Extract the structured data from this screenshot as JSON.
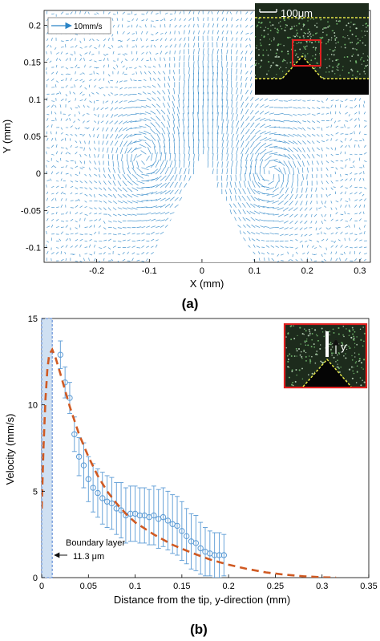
{
  "figure": {
    "panel_a_label": "(a)",
    "panel_b_label": "(b)"
  },
  "chart_data": [
    {
      "type": "quiver",
      "xlabel": "X (mm)",
      "ylabel": "Y (mm)",
      "xlim": [
        -0.3,
        0.32
      ],
      "ylim": [
        -0.12,
        0.22
      ],
      "xticks": [
        -0.2,
        -0.1,
        0,
        0.1,
        0.2,
        0.3
      ],
      "xtick_labels": [
        "-0.2",
        "-0.1",
        "0",
        "0.1",
        "0.2",
        "0.3"
      ],
      "yticks": [
        -0.1,
        -0.05,
        0,
        0.05,
        0.1,
        0.15,
        0.2
      ],
      "ytick_labels": [
        "-0.1",
        "-0.05",
        "0",
        "0.05",
        "0.1",
        "0.15",
        "0.2"
      ],
      "legend": {
        "text": "10mm/s",
        "reference_speed_mm_s": 10,
        "position": "top-left"
      },
      "tip_wedge": {
        "apex": [
          0.0,
          0.02
        ],
        "base_left": [
          -0.1,
          -0.12
        ],
        "base_right": [
          0.1,
          -0.12
        ]
      },
      "inset": {
        "label": "100μm",
        "position": "top-right"
      },
      "vector_color": "#2a84c6",
      "grid": false
    },
    {
      "type": "scatter",
      "xlabel": "Distance from the tip, y-direction (mm)",
      "ylabel": "Velocity (mm/s)",
      "xlim": [
        0,
        0.35
      ],
      "ylim": [
        0,
        15
      ],
      "xticks": [
        0,
        0.05,
        0.1,
        0.15,
        0.2,
        0.25,
        0.3,
        0.35
      ],
      "xtick_labels": [
        "0",
        "0.05",
        "0.1",
        "0.15",
        "0.2",
        "0.25",
        "0.3",
        "0.35"
      ],
      "yticks": [
        0,
        5,
        10,
        15
      ],
      "ytick_labels": [
        "0",
        "5",
        "10",
        "15"
      ],
      "grid": false,
      "series": [
        {
          "style": "markers with error bars",
          "color": "#5b9bd5",
          "x": [
            0.02,
            0.025,
            0.03,
            0.035,
            0.04,
            0.045,
            0.05,
            0.055,
            0.06,
            0.065,
            0.07,
            0.075,
            0.08,
            0.085,
            0.09,
            0.095,
            0.1,
            0.105,
            0.11,
            0.115,
            0.12,
            0.125,
            0.13,
            0.135,
            0.14,
            0.145,
            0.15,
            0.155,
            0.16,
            0.165,
            0.17,
            0.175,
            0.18,
            0.185,
            0.19,
            0.195
          ],
          "y": [
            12.9,
            11.3,
            10.4,
            8.3,
            7.0,
            6.5,
            5.7,
            5.2,
            4.9,
            4.6,
            4.4,
            4.3,
            4.0,
            3.9,
            3.6,
            3.7,
            3.7,
            3.6,
            3.6,
            3.5,
            3.6,
            3.4,
            3.5,
            3.3,
            3.1,
            3.0,
            2.7,
            2.4,
            2.1,
            2.0,
            1.7,
            1.5,
            1.4,
            1.3,
            1.3,
            1.3
          ],
          "err": [
            0.8,
            0.9,
            0.9,
            1.0,
            1.1,
            1.3,
            1.3,
            1.4,
            1.4,
            1.5,
            1.5,
            1.5,
            1.5,
            1.6,
            1.6,
            1.6,
            1.6,
            1.6,
            1.6,
            1.6,
            1.7,
            1.7,
            1.7,
            1.7,
            1.7,
            1.7,
            1.7,
            1.6,
            1.6,
            1.6,
            1.5,
            1.4,
            1.3,
            1.3,
            1.3,
            1.2
          ]
        },
        {
          "style": "dashed fit",
          "color": "#d05a23",
          "x": [
            0.0,
            0.002,
            0.004,
            0.006,
            0.008,
            0.0113,
            0.015,
            0.02,
            0.03,
            0.04,
            0.05,
            0.06,
            0.07,
            0.08,
            0.09,
            0.1,
            0.12,
            0.14,
            0.16,
            0.18,
            0.2,
            0.22,
            0.24,
            0.26,
            0.28,
            0.3,
            0.315
          ],
          "y": [
            4.0,
            7.6,
            10.3,
            12.0,
            12.9,
            13.2,
            12.7,
            11.8,
            9.9,
            8.3,
            7.0,
            5.9,
            5.0,
            4.3,
            3.7,
            3.2,
            2.5,
            1.9,
            1.45,
            1.05,
            0.75,
            0.5,
            0.3,
            0.17,
            0.08,
            0.02,
            0.0
          ]
        }
      ],
      "boundary_layer": {
        "label": "Boundary layer",
        "value_label": "11.3 μm",
        "width_mm": 0.0113
      },
      "inset": {
        "label": "y",
        "position": "top-right"
      }
    }
  ]
}
